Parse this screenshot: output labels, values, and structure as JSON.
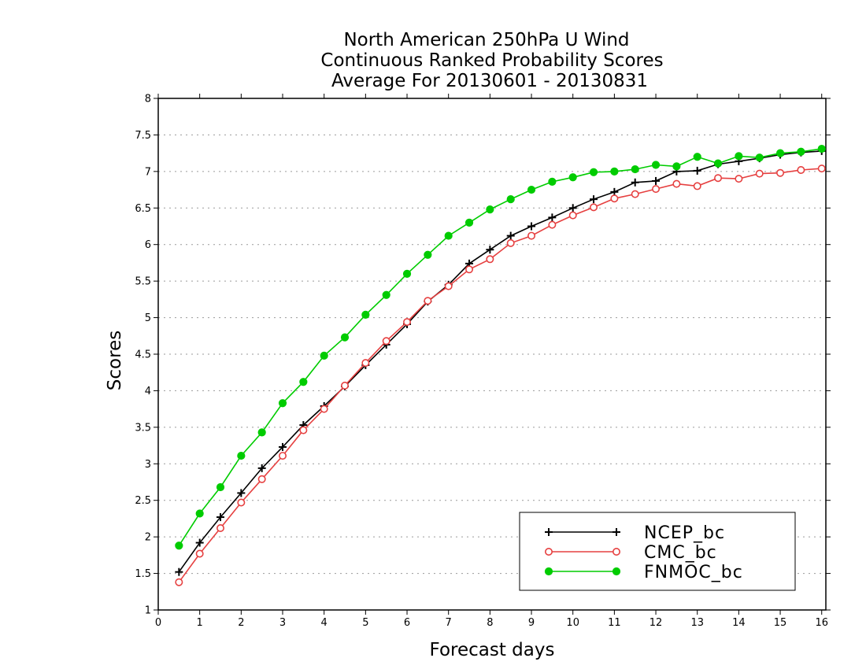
{
  "chart_data": {
    "type": "line",
    "title_lines": [
      "North American 250hPa U Wind",
      "Continuous Ranked Probability Scores",
      "Average For 20130601 - 20130831"
    ],
    "xlabel": "Forecast days",
    "ylabel": "Scores",
    "xlim": [
      0,
      16.1
    ],
    "ylim": [
      1,
      8
    ],
    "x_ticks": [
      0,
      1,
      2,
      3,
      4,
      5,
      6,
      7,
      8,
      9,
      10,
      11,
      12,
      13,
      14,
      15,
      16
    ],
    "y_ticks": [
      1,
      1.5,
      2,
      2.5,
      3,
      3.5,
      4,
      4.5,
      5,
      5.5,
      6,
      6.5,
      7,
      7.5,
      8
    ],
    "grid": "horizontal dotted",
    "legend_position": "bottom-right",
    "x": [
      0.5,
      1,
      1.5,
      2,
      2.5,
      3,
      3.5,
      4,
      4.5,
      5,
      5.5,
      6,
      6.5,
      7,
      7.5,
      8,
      8.5,
      9,
      9.5,
      10,
      10.5,
      11,
      11.5,
      12,
      12.5,
      13,
      13.5,
      14,
      14.5,
      15,
      15.5,
      16
    ],
    "series": [
      {
        "name": "NCEP_bc",
        "color": "#000000",
        "marker": "plus",
        "values": [
          1.52,
          1.92,
          2.27,
          2.6,
          2.94,
          3.23,
          3.53,
          3.79,
          4.06,
          4.35,
          4.63,
          4.91,
          5.22,
          5.45,
          5.74,
          5.93,
          6.12,
          6.25,
          6.37,
          6.5,
          6.62,
          6.72,
          6.85,
          6.87,
          7.0,
          7.01,
          7.1,
          7.14,
          7.18,
          7.23,
          7.26,
          7.28
        ]
      },
      {
        "name": "CMC_bc",
        "color": "#e64040",
        "marker": "open-circle",
        "values": [
          1.38,
          1.77,
          2.12,
          2.47,
          2.79,
          3.11,
          3.46,
          3.75,
          4.07,
          4.38,
          4.68,
          4.94,
          5.23,
          5.43,
          5.66,
          5.8,
          6.02,
          6.12,
          6.27,
          6.4,
          6.51,
          6.63,
          6.69,
          6.76,
          6.83,
          6.8,
          6.91,
          6.9,
          6.97,
          6.98,
          7.02,
          7.04
        ]
      },
      {
        "name": "FNMOC_bc",
        "color": "#00cc00",
        "marker": "filled-circle",
        "values": [
          1.88,
          2.32,
          2.68,
          3.11,
          3.43,
          3.83,
          4.12,
          4.48,
          4.73,
          5.04,
          5.31,
          5.6,
          5.86,
          6.12,
          6.3,
          6.48,
          6.62,
          6.75,
          6.86,
          6.92,
          6.99,
          7.0,
          7.03,
          7.09,
          7.07,
          7.2,
          7.11,
          7.21,
          7.19,
          7.25,
          7.27,
          7.31
        ]
      }
    ]
  }
}
